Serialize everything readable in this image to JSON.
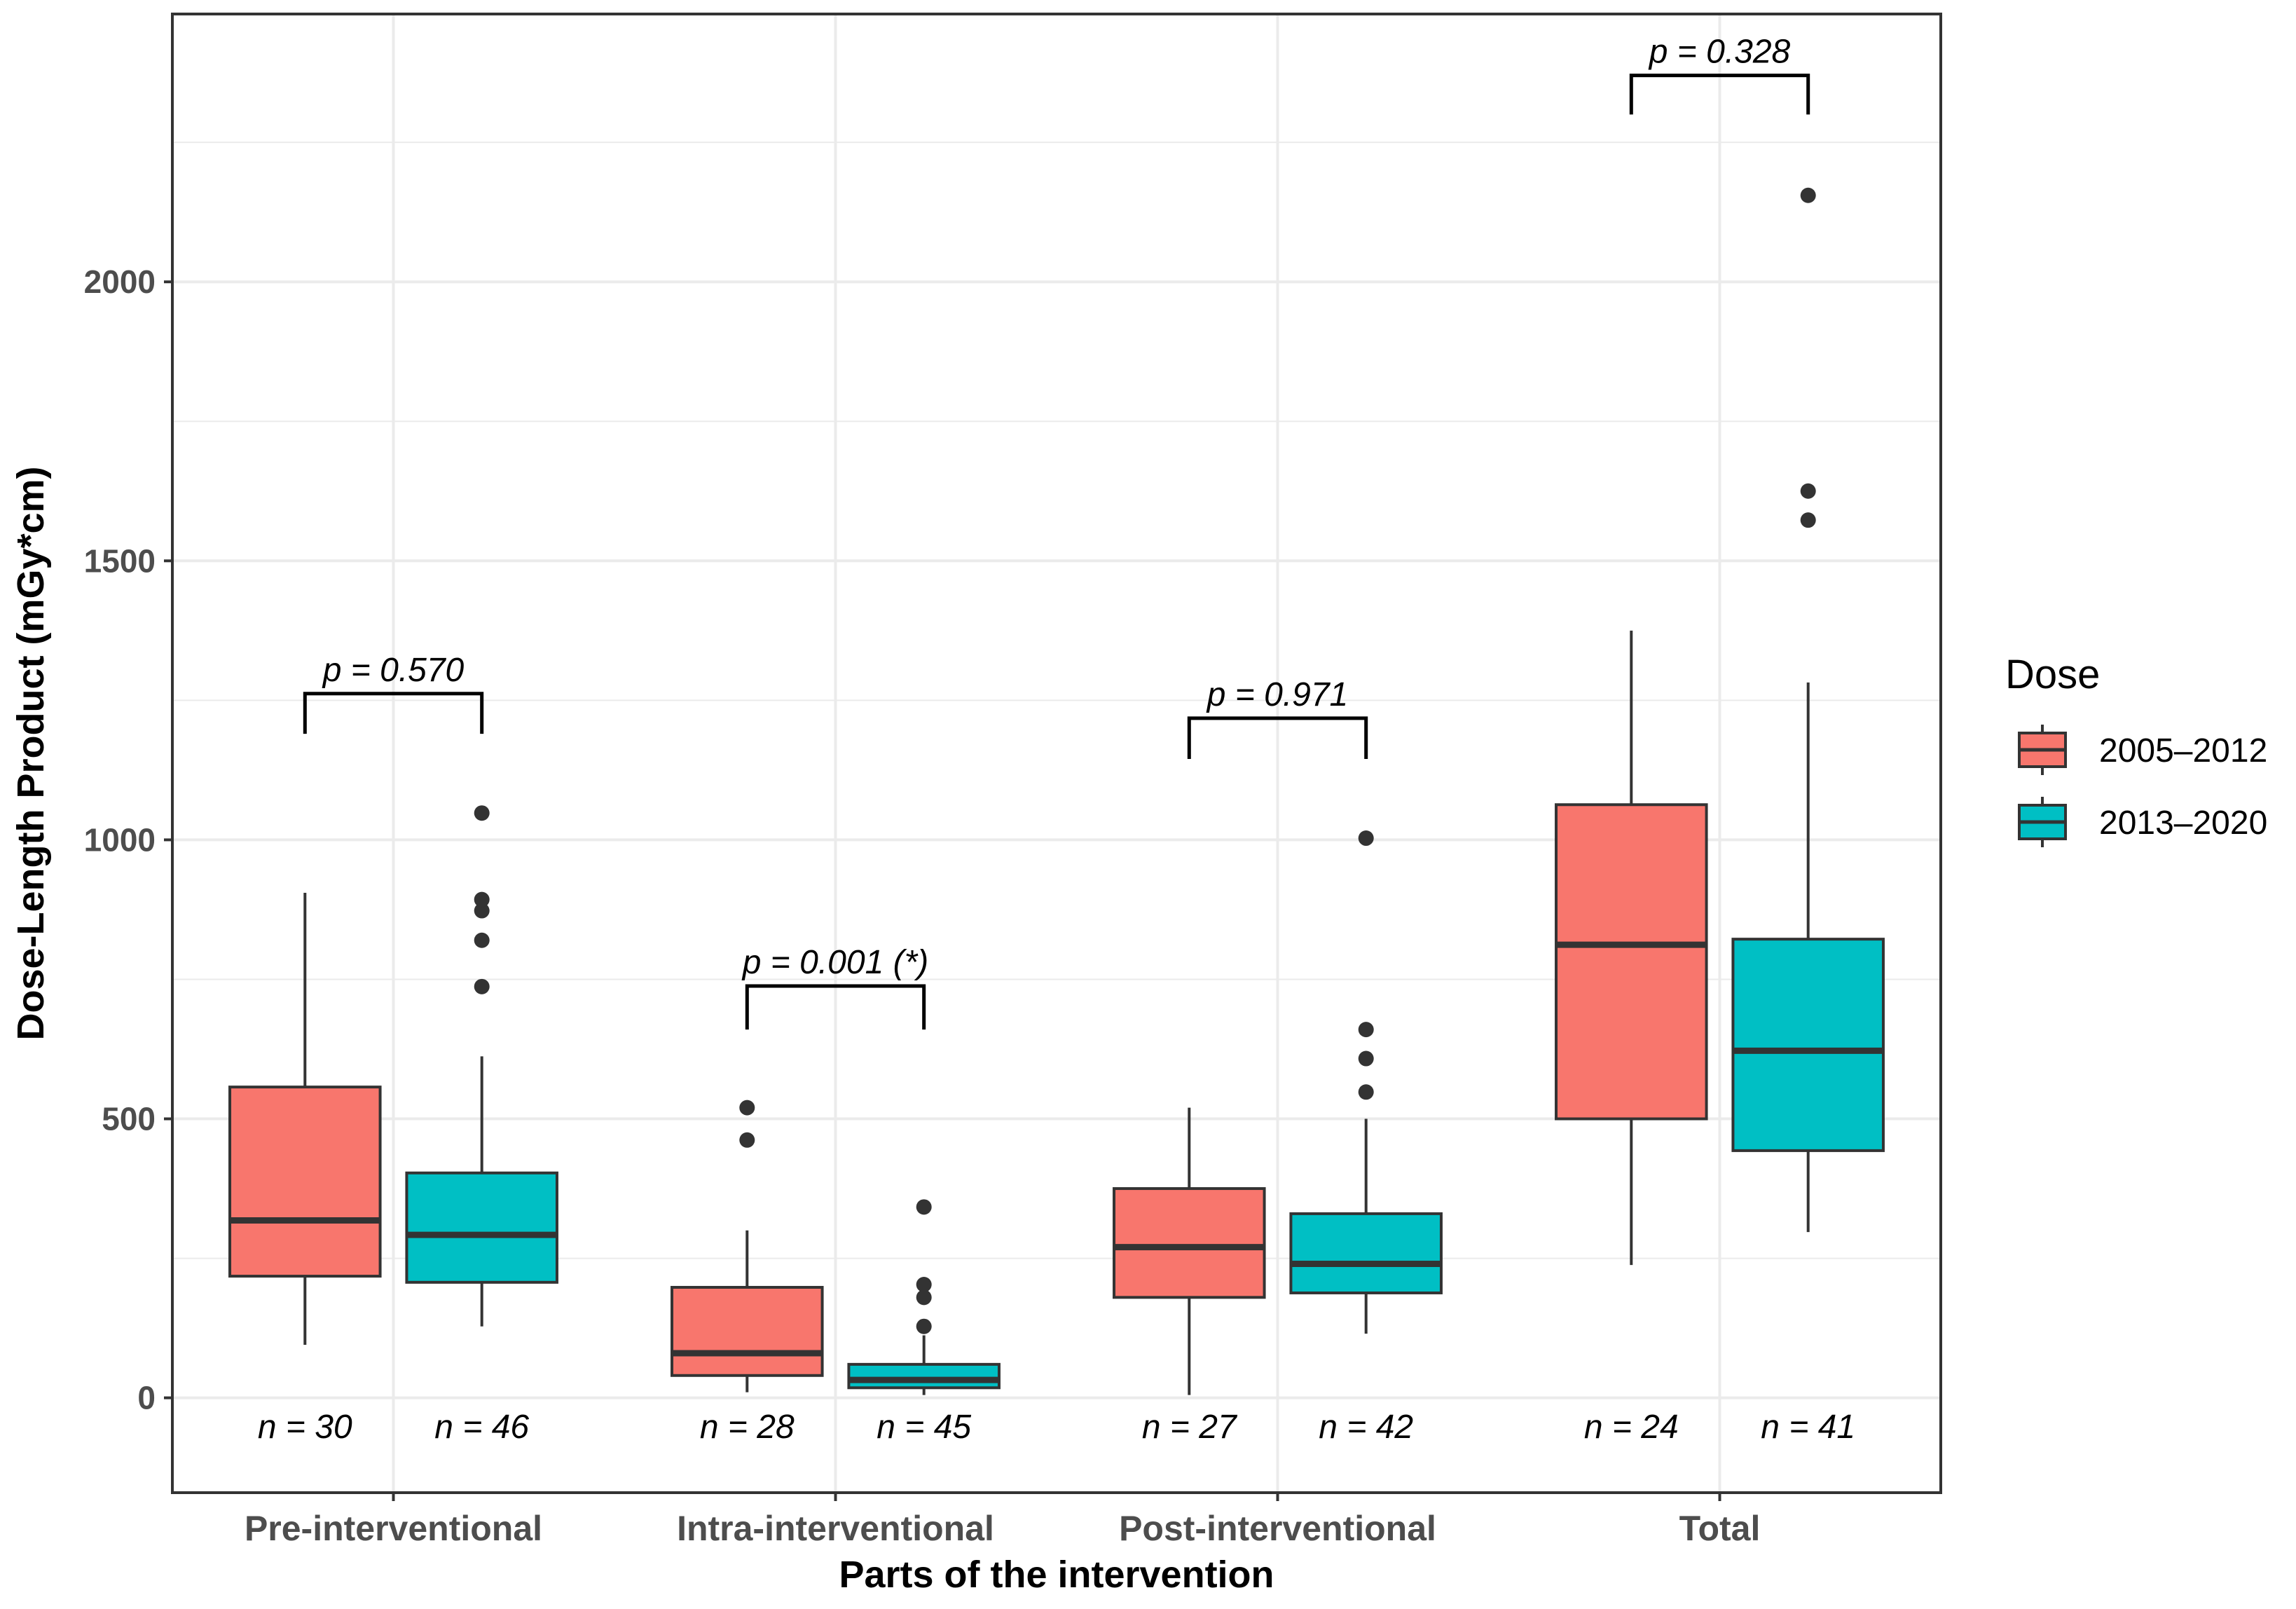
{
  "chart_data": {
    "type": "boxplot",
    "xlabel": "Parts of the intervention",
    "ylabel": "Dose-Length Product (mGy*cm)",
    "ylim": [
      -170,
      2480
    ],
    "yticks": [
      0,
      500,
      1000,
      1500,
      2000
    ],
    "grid": true,
    "legend": {
      "title": "Dose",
      "placement": "right"
    },
    "categories": [
      "Pre-interventional",
      "Intra-interventional",
      "Post-interventional",
      "Total"
    ],
    "series": [
      {
        "name": "2005–2012",
        "color": "#F8766D",
        "boxes": [
          {
            "whisker_low": 95,
            "q1": 218,
            "median": 318,
            "q3": 557,
            "whisker_high": 905,
            "outliers": [],
            "n_label": "n = 30"
          },
          {
            "whisker_low": 10,
            "q1": 40,
            "median": 80,
            "q3": 198,
            "whisker_high": 300,
            "outliers": [
              462,
              520
            ],
            "n_label": "n = 28"
          },
          {
            "whisker_low": 5,
            "q1": 180,
            "median": 270,
            "q3": 375,
            "whisker_high": 520,
            "outliers": [],
            "n_label": "n = 27"
          },
          {
            "whisker_low": 238,
            "q1": 500,
            "median": 812,
            "q3": 1063,
            "whisker_high": 1375,
            "outliers": [],
            "n_label": "n = 24"
          }
        ]
      },
      {
        "name": "2013–2020",
        "color": "#00BFC4",
        "boxes": [
          {
            "whisker_low": 128,
            "q1": 207,
            "median": 292,
            "q3": 403,
            "whisker_high": 612,
            "outliers": [
              737,
              820,
              873,
              893,
              1048
            ],
            "n_label": "n = 46"
          },
          {
            "whisker_low": 5,
            "q1": 18,
            "median": 32,
            "q3": 60,
            "whisker_high": 112,
            "outliers": [
              128,
              180,
              203,
              342
            ],
            "n_label": "n = 45"
          },
          {
            "whisker_low": 115,
            "q1": 188,
            "median": 240,
            "q3": 330,
            "whisker_high": 500,
            "outliers": [
              548,
              608,
              660,
              1003
            ],
            "n_label": "n = 42"
          },
          {
            "whisker_low": 297,
            "q1": 443,
            "median": 622,
            "q3": 822,
            "whisker_high": 1282,
            "outliers": [
              1573,
              1625,
              2155
            ],
            "n_label": "n = 41"
          }
        ]
      }
    ],
    "annotations": [
      {
        "category": "Pre-interventional",
        "text": "p = 0.570",
        "bracket_y": 1262,
        "tick_bottom": 1190
      },
      {
        "category": "Intra-interventional",
        "text": "p = 0.001 (*)",
        "bracket_y": 738,
        "tick_bottom": 660
      },
      {
        "category": "Post-interventional",
        "text": "p = 0.971",
        "bracket_y": 1218,
        "tick_bottom": 1145
      },
      {
        "category": "Total",
        "text": "p = 0.328",
        "bracket_y": 2370,
        "tick_bottom": 2300
      }
    ]
  }
}
